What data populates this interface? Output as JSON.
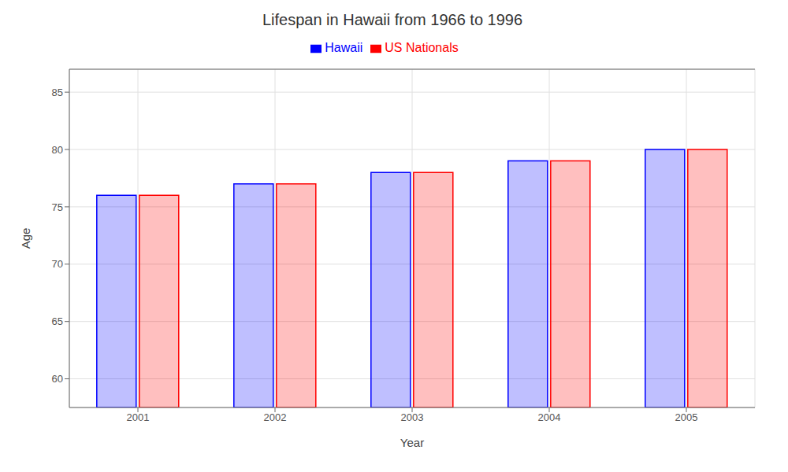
{
  "chart_data": {
    "type": "bar",
    "title": "Lifespan in Hawaii from 1966 to 1996",
    "x_label": "Year",
    "y_label": "Age",
    "categories": [
      "2001",
      "2002",
      "2003",
      "2004",
      "2005"
    ],
    "series": [
      {
        "name": "Hawaii",
        "color": "#0000ff",
        "values": [
          76,
          77,
          78,
          79,
          80
        ]
      },
      {
        "name": "US Nationals",
        "color": "#ff0000",
        "values": [
          76,
          77,
          78,
          79,
          80
        ]
      }
    ],
    "ylim": [
      57.5,
      87
    ],
    "yticks": [
      60,
      65,
      70,
      75,
      80,
      85
    ],
    "grid": true,
    "legend": "top"
  }
}
